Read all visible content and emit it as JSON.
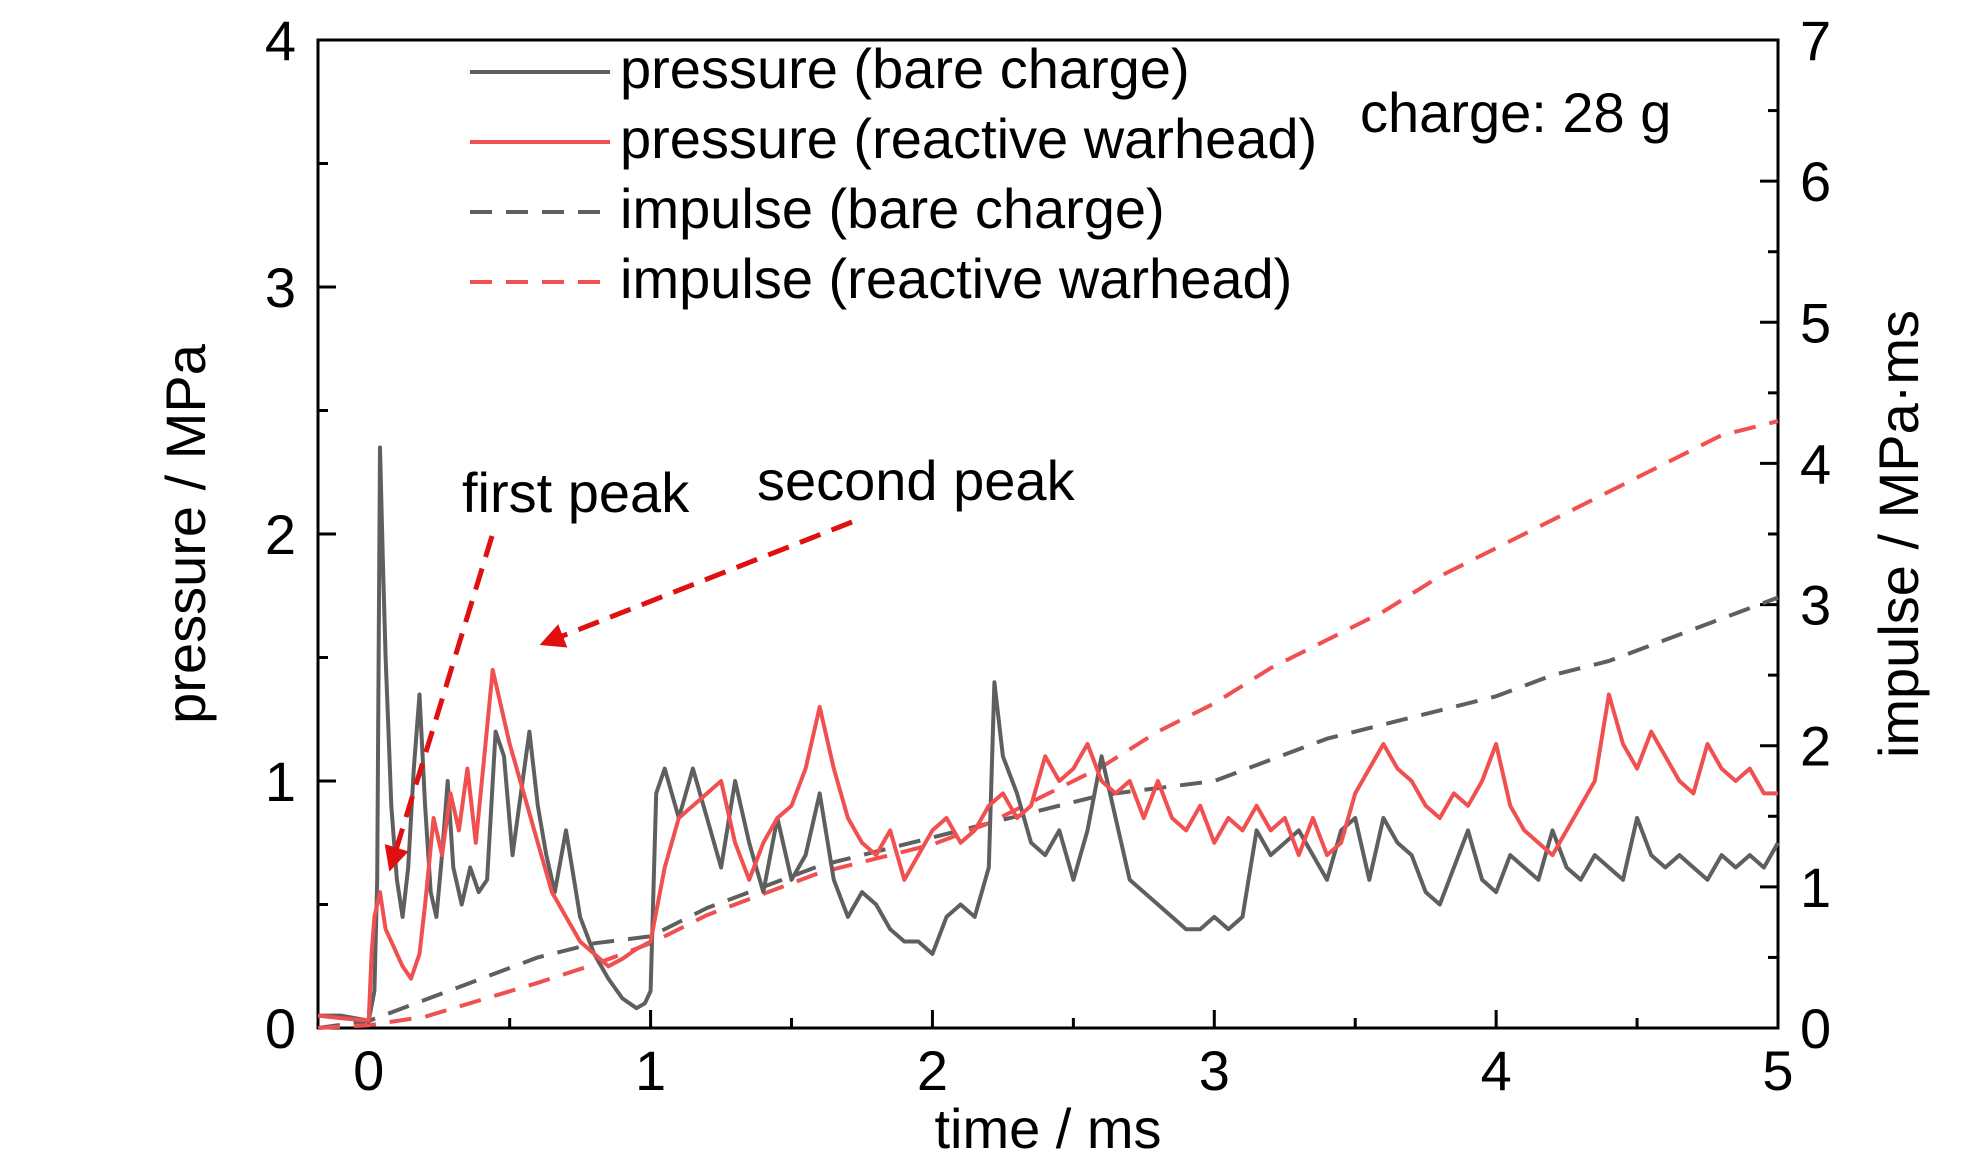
{
  "chart_data": {
    "type": "line",
    "xlabel": "time / ms",
    "ylabel_left": "pressure / MPa",
    "ylabel_right": "impulse / MPa·ms",
    "xlim": [
      -0.18,
      5.0
    ],
    "ylim_left": [
      0,
      4
    ],
    "ylim_right": [
      0,
      7
    ],
    "xticks": [
      0,
      1,
      2,
      3,
      4,
      5
    ],
    "yticks_left": [
      0,
      1,
      2,
      3,
      4
    ],
    "yticks_right": [
      0,
      1,
      2,
      3,
      4,
      5,
      6,
      7
    ],
    "grid": false,
    "legend_position": "top-left",
    "colors": {
      "bare_charge": "#5f5f5f",
      "reactive_warhead": "#f0504f",
      "arrow": "#e01010"
    },
    "annotation_charge": "charge: 28 g",
    "annotations": [
      {
        "text": "first peak",
        "points_to_x": 0.05,
        "points_to_y": 0.62
      },
      {
        "text": "second peak",
        "points_to_x": 0.58,
        "points_to_y": 1.55
      }
    ],
    "series": [
      {
        "name": "pressure (bare charge)",
        "axis": "left",
        "style": "solid",
        "x": [
          -0.18,
          -0.1,
          0.0,
          0.02,
          0.03,
          0.04,
          0.05,
          0.06,
          0.07,
          0.08,
          0.09,
          0.1,
          0.12,
          0.14,
          0.16,
          0.18,
          0.2,
          0.22,
          0.24,
          0.26,
          0.28,
          0.3,
          0.33,
          0.36,
          0.39,
          0.42,
          0.45,
          0.48,
          0.51,
          0.54,
          0.57,
          0.6,
          0.63,
          0.66,
          0.7,
          0.75,
          0.8,
          0.85,
          0.9,
          0.95,
          0.98,
          1.0,
          1.02,
          1.05,
          1.1,
          1.15,
          1.2,
          1.25,
          1.3,
          1.35,
          1.4,
          1.45,
          1.5,
          1.55,
          1.6,
          1.65,
          1.7,
          1.75,
          1.8,
          1.85,
          1.9,
          1.95,
          2.0,
          2.05,
          2.1,
          2.15,
          2.2,
          2.22,
          2.25,
          2.3,
          2.35,
          2.4,
          2.45,
          2.5,
          2.55,
          2.6,
          2.65,
          2.7,
          2.75,
          2.8,
          2.85,
          2.9,
          2.95,
          3.0,
          3.05,
          3.1,
          3.15,
          3.2,
          3.25,
          3.3,
          3.35,
          3.4,
          3.45,
          3.5,
          3.55,
          3.6,
          3.65,
          3.7,
          3.75,
          3.8,
          3.85,
          3.9,
          3.95,
          4.0,
          4.05,
          4.1,
          4.15,
          4.2,
          4.25,
          4.3,
          4.35,
          4.4,
          4.45,
          4.5,
          4.55,
          4.6,
          4.65,
          4.7,
          4.75,
          4.8,
          4.85,
          4.9,
          4.95,
          5.0
        ],
        "values": [
          0.05,
          0.05,
          0.03,
          0.15,
          0.6,
          2.35,
          1.9,
          1.5,
          1.2,
          0.9,
          0.75,
          0.6,
          0.45,
          0.65,
          1.05,
          1.35,
          0.9,
          0.55,
          0.45,
          0.7,
          1.0,
          0.65,
          0.5,
          0.65,
          0.55,
          0.6,
          1.2,
          1.1,
          0.7,
          0.95,
          1.2,
          0.9,
          0.7,
          0.55,
          0.8,
          0.45,
          0.3,
          0.2,
          0.12,
          0.08,
          0.1,
          0.15,
          0.95,
          1.05,
          0.85,
          1.05,
          0.85,
          0.65,
          1.0,
          0.75,
          0.55,
          0.85,
          0.6,
          0.7,
          0.95,
          0.6,
          0.45,
          0.55,
          0.5,
          0.4,
          0.35,
          0.35,
          0.3,
          0.45,
          0.5,
          0.45,
          0.65,
          1.4,
          1.1,
          0.95,
          0.75,
          0.7,
          0.8,
          0.6,
          0.8,
          1.1,
          0.85,
          0.6,
          0.55,
          0.5,
          0.45,
          0.4,
          0.4,
          0.45,
          0.4,
          0.45,
          0.8,
          0.7,
          0.75,
          0.8,
          0.7,
          0.6,
          0.8,
          0.85,
          0.6,
          0.85,
          0.75,
          0.7,
          0.55,
          0.5,
          0.65,
          0.8,
          0.6,
          0.55,
          0.7,
          0.65,
          0.6,
          0.8,
          0.65,
          0.6,
          0.7,
          0.65,
          0.6,
          0.85,
          0.7,
          0.65,
          0.7,
          0.65,
          0.6,
          0.7,
          0.65,
          0.7,
          0.65,
          0.75
        ]
      },
      {
        "name": "pressure (reactive warhead)",
        "axis": "left",
        "style": "solid",
        "x": [
          -0.18,
          -0.1,
          0.0,
          0.01,
          0.02,
          0.04,
          0.06,
          0.08,
          0.1,
          0.12,
          0.15,
          0.18,
          0.2,
          0.23,
          0.26,
          0.29,
          0.32,
          0.35,
          0.38,
          0.41,
          0.44,
          0.47,
          0.5,
          0.55,
          0.6,
          0.65,
          0.7,
          0.75,
          0.8,
          0.85,
          0.9,
          0.95,
          1.0,
          1.05,
          1.1,
          1.15,
          1.2,
          1.25,
          1.3,
          1.35,
          1.4,
          1.45,
          1.5,
          1.55,
          1.6,
          1.65,
          1.7,
          1.75,
          1.8,
          1.85,
          1.9,
          1.95,
          2.0,
          2.05,
          2.1,
          2.15,
          2.2,
          2.25,
          2.3,
          2.35,
          2.4,
          2.45,
          2.5,
          2.55,
          2.6,
          2.65,
          2.7,
          2.75,
          2.8,
          2.85,
          2.9,
          2.95,
          3.0,
          3.05,
          3.1,
          3.15,
          3.2,
          3.25,
          3.3,
          3.35,
          3.4,
          3.45,
          3.5,
          3.55,
          3.6,
          3.65,
          3.7,
          3.75,
          3.8,
          3.85,
          3.9,
          3.95,
          4.0,
          4.05,
          4.1,
          4.15,
          4.2,
          4.25,
          4.3,
          4.35,
          4.4,
          4.45,
          4.5,
          4.55,
          4.6,
          4.65,
          4.7,
          4.75,
          4.8,
          4.85,
          4.9,
          4.95,
          5.0
        ],
        "values": [
          0.05,
          0.04,
          0.03,
          0.3,
          0.45,
          0.55,
          0.4,
          0.35,
          0.3,
          0.25,
          0.2,
          0.3,
          0.5,
          0.85,
          0.7,
          0.95,
          0.8,
          1.05,
          0.75,
          1.1,
          1.45,
          1.3,
          1.15,
          0.95,
          0.75,
          0.55,
          0.45,
          0.35,
          0.3,
          0.25,
          0.28,
          0.32,
          0.35,
          0.65,
          0.85,
          0.9,
          0.95,
          1.0,
          0.75,
          0.6,
          0.75,
          0.85,
          0.9,
          1.05,
          1.3,
          1.05,
          0.85,
          0.75,
          0.7,
          0.8,
          0.6,
          0.7,
          0.8,
          0.85,
          0.75,
          0.8,
          0.9,
          0.95,
          0.85,
          0.9,
          1.1,
          1.0,
          1.05,
          1.15,
          1.0,
          0.95,
          1.0,
          0.85,
          1.0,
          0.85,
          0.8,
          0.9,
          0.75,
          0.85,
          0.8,
          0.9,
          0.8,
          0.85,
          0.7,
          0.85,
          0.7,
          0.75,
          0.95,
          1.05,
          1.15,
          1.05,
          1.0,
          0.9,
          0.85,
          0.95,
          0.9,
          1.0,
          1.15,
          0.9,
          0.8,
          0.75,
          0.7,
          0.8,
          0.9,
          1.0,
          1.35,
          1.15,
          1.05,
          1.2,
          1.1,
          1.0,
          0.95,
          1.15,
          1.05,
          1.0,
          1.05,
          0.95,
          0.95
        ]
      },
      {
        "name": "impulse (bare charge)",
        "axis": "right",
        "style": "dashed",
        "x": [
          -0.18,
          0.0,
          0.2,
          0.4,
          0.6,
          0.8,
          1.0,
          1.2,
          1.4,
          1.6,
          1.8,
          2.0,
          2.2,
          2.4,
          2.6,
          2.8,
          3.0,
          3.2,
          3.4,
          3.6,
          3.8,
          4.0,
          4.2,
          4.4,
          4.6,
          4.8,
          5.0
        ],
        "values": [
          0.0,
          0.05,
          0.2,
          0.35,
          0.5,
          0.6,
          0.65,
          0.85,
          1.0,
          1.15,
          1.25,
          1.35,
          1.45,
          1.55,
          1.65,
          1.7,
          1.75,
          1.9,
          2.05,
          2.15,
          2.25,
          2.35,
          2.5,
          2.6,
          2.75,
          2.9,
          3.05
        ]
      },
      {
        "name": "impulse (reactive warhead)",
        "axis": "right",
        "style": "dashed",
        "x": [
          -0.18,
          0.0,
          0.2,
          0.4,
          0.6,
          0.8,
          1.0,
          1.2,
          1.4,
          1.6,
          1.8,
          2.0,
          2.2,
          2.4,
          2.6,
          2.8,
          3.0,
          3.2,
          3.4,
          3.6,
          3.8,
          4.0,
          4.2,
          4.4,
          4.6,
          4.8,
          5.0
        ],
        "values": [
          0.0,
          0.02,
          0.08,
          0.2,
          0.32,
          0.45,
          0.6,
          0.8,
          0.95,
          1.1,
          1.2,
          1.3,
          1.45,
          1.65,
          1.85,
          2.1,
          2.3,
          2.55,
          2.75,
          2.95,
          3.2,
          3.4,
          3.6,
          3.8,
          4.0,
          4.2,
          4.3
        ]
      }
    ]
  }
}
